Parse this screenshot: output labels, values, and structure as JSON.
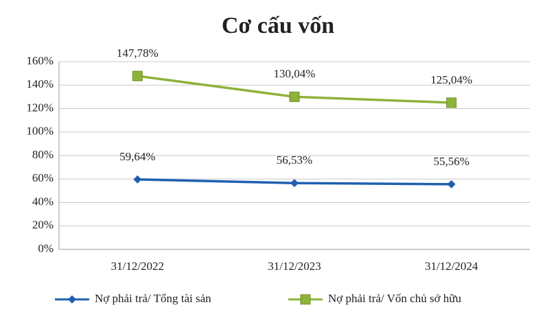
{
  "chart_data": {
    "type": "line",
    "title": "Cơ cấu vốn",
    "categories": [
      "31/12/2022",
      "31/12/2023",
      "31/12/2024"
    ],
    "series": [
      {
        "name": "Nợ phải trả/ Tổng tài sản",
        "color": "#1f5fb0",
        "marker": "diamond",
        "values": [
          59.64,
          56.53,
          55.56
        ],
        "value_labels": [
          "59,64%",
          "56,53%",
          "55,56%"
        ]
      },
      {
        "name": "Nợ phải trả/ Vốn chủ sở hữu",
        "color": "#8db33a",
        "marker": "square",
        "values": [
          147.78,
          130.04,
          125.04
        ],
        "value_labels": [
          "147,78%",
          "130,04%",
          "125,04%"
        ]
      }
    ],
    "ylim": [
      0,
      160
    ],
    "yticks": [
      {
        "value": 0,
        "label": "0%"
      },
      {
        "value": 20,
        "label": "20%"
      },
      {
        "value": 40,
        "label": "40%"
      },
      {
        "value": 60,
        "label": "60%"
      },
      {
        "value": 80,
        "label": "80%"
      },
      {
        "value": 100,
        "label": "100%"
      },
      {
        "value": 120,
        "label": "120%"
      },
      {
        "value": 140,
        "label": "140%"
      },
      {
        "value": 160,
        "label": "160%"
      }
    ],
    "grid": true,
    "legend": "bottom"
  }
}
